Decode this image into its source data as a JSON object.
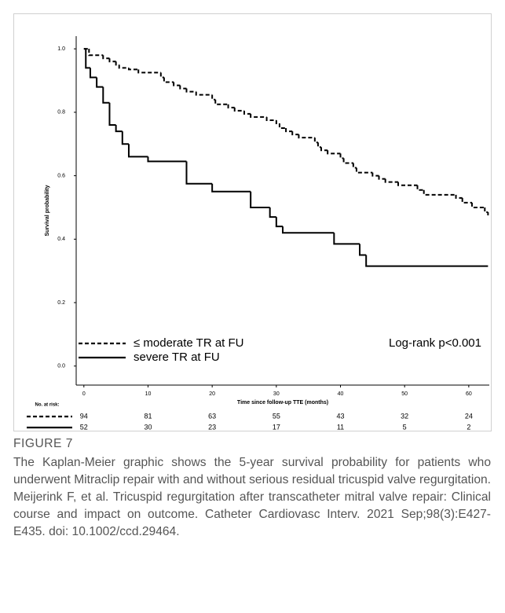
{
  "chart_data": {
    "type": "step",
    "xlabel": "Time since follow-up TTE (months)",
    "ylabel": "Survival probability",
    "xlim": [
      -1.2,
      63.2
    ],
    "xticks": [
      0,
      10,
      20,
      30,
      40,
      50,
      60
    ],
    "ylim": [
      -0.06,
      1.04
    ],
    "yticks": [
      {
        "value": 0,
        "label": "0.0"
      },
      0.2,
      0.4,
      0.6,
      0.8,
      {
        "value": 1,
        "label": "1.0"
      }
    ],
    "grid": false,
    "legend": "lower left",
    "annotation": "Log-rank p<0.001",
    "series": [
      {
        "name": "≤ moderate TR at FU",
        "color": "#000000",
        "dash": true,
        "x": [
          0,
          0.8,
          3,
          4,
          5,
          5.5,
          7,
          8.5,
          12,
          12.5,
          14,
          15,
          16,
          17.5,
          20,
          20.5,
          22.5,
          23.5,
          25,
          26,
          28.5,
          30,
          30.5,
          31.5,
          32.5,
          33.5,
          36,
          36.5,
          37,
          38,
          40,
          40.5,
          42,
          42.5,
          45,
          46,
          47,
          49,
          52,
          53,
          58,
          59,
          60.5,
          62.5,
          63
        ],
        "values": [
          1.0,
          0.98,
          0.97,
          0.96,
          0.95,
          0.94,
          0.935,
          0.925,
          0.91,
          0.895,
          0.885,
          0.875,
          0.865,
          0.855,
          0.84,
          0.825,
          0.815,
          0.805,
          0.795,
          0.785,
          0.775,
          0.765,
          0.75,
          0.74,
          0.73,
          0.72,
          0.705,
          0.69,
          0.68,
          0.67,
          0.655,
          0.64,
          0.625,
          0.61,
          0.6,
          0.59,
          0.58,
          0.57,
          0.555,
          0.54,
          0.53,
          0.515,
          0.5,
          0.485,
          0.475
        ]
      },
      {
        "name": "severe TR at FU",
        "color": "#000000",
        "dash": false,
        "x": [
          0,
          0.3,
          1,
          2,
          3,
          4,
          5,
          6,
          7,
          10,
          16,
          20,
          26,
          29,
          30,
          31,
          39,
          43,
          44,
          63
        ],
        "values": [
          1.0,
          0.94,
          0.91,
          0.88,
          0.83,
          0.76,
          0.74,
          0.7,
          0.66,
          0.645,
          0.575,
          0.55,
          0.5,
          0.47,
          0.44,
          0.42,
          0.385,
          0.35,
          0.315,
          0.315
        ]
      }
    ],
    "at_risk": {
      "title": "No. at risk:",
      "counts": [
        [
          94,
          81,
          63,
          55,
          43,
          32,
          24
        ],
        [
          52,
          30,
          23,
          17,
          11,
          5,
          2
        ]
      ]
    }
  },
  "figure": {
    "label": "FIGURE 7",
    "caption": "The Kaplan-Meier graphic shows the 5-year survival probability for patients who underwent Mitraclip repair with and without serious residual tricuspid valve regurgitation. Meijerink F, et al. Tricuspid regurgitation after transcatheter mitral valve repair: Clinical course and impact on outcome. Catheter Cardiovasc Interv. 2021 Sep;98(3):E427-E435. doi: 10.1002/ccd.29464."
  }
}
